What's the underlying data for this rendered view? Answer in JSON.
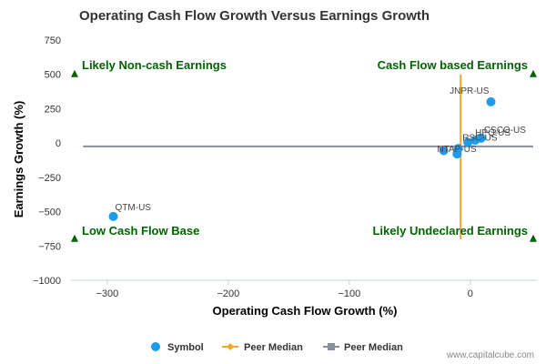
{
  "chart_data": {
    "type": "scatter",
    "title": "Operating Cash Flow Growth Versus Earnings Growth",
    "xlabel": "Operating Cash Flow Growth (%)",
    "ylabel": "Earnings Growth (%)",
    "xlim": [
      -330,
      55
    ],
    "ylim": [
      -1000,
      750
    ],
    "xticks": [
      -300,
      -200,
      -100,
      0
    ],
    "xtick_labels": [
      "−300",
      "−200",
      "−100",
      "0"
    ],
    "yticks": [
      -1000,
      -750,
      -500,
      -250,
      0,
      250,
      500,
      750
    ],
    "ytick_labels": [
      "−1000",
      "−750",
      "−500",
      "−250",
      "0",
      "250",
      "500",
      "750"
    ],
    "grid": false,
    "legend_position": "bottom",
    "quadrant_labels": {
      "top_left": "Likely Non-cash Earnings",
      "top_right": "Cash Flow based Earnings",
      "bottom_left": "Low Cash Flow Base",
      "bottom_right": "Likely Undeclared Earnings"
    },
    "series": [
      {
        "name": "Symbol",
        "color": "#1e9bea",
        "points": [
          {
            "label": "JNPR-US",
            "x": 17,
            "y": 300
          },
          {
            "label": "QTM-US",
            "x": -295,
            "y": -535
          },
          {
            "label": "CSCO-US",
            "x": 9,
            "y": 35
          },
          {
            "label": "HPQ-US",
            "x": 4,
            "y": 20
          },
          {
            "label": "RSC-US",
            "x": -2,
            "y": 5
          },
          {
            "label": "NTAP-US",
            "x": -10,
            "y": -40
          },
          {
            "label": "",
            "x": -22,
            "y": -55
          },
          {
            "label": "",
            "x": -11,
            "y": -80
          }
        ]
      },
      {
        "name": "Peer Median",
        "color": "#f5a623",
        "orientation": "vertical",
        "x": -8,
        "y_range": [
          -700,
          500
        ]
      },
      {
        "name": "Peer Median",
        "color": "#8a8f9c",
        "orientation": "horizontal",
        "y": -25,
        "x_range": [
          -320,
          52
        ]
      }
    ]
  },
  "watermark": "www.capitalcube.com",
  "colors": {
    "quadrant_marker": "#006400",
    "axis_line": "#c0d0e0"
  }
}
